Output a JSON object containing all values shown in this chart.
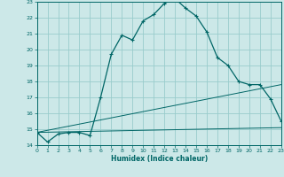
{
  "xlabel": "Humidex (Indice chaleur)",
  "xlim": [
    0,
    23
  ],
  "ylim": [
    14,
    23
  ],
  "yticks": [
    14,
    15,
    16,
    17,
    18,
    19,
    20,
    21,
    22,
    23
  ],
  "xticks": [
    0,
    1,
    2,
    3,
    4,
    5,
    6,
    7,
    8,
    9,
    10,
    11,
    12,
    13,
    14,
    15,
    16,
    17,
    18,
    19,
    20,
    21,
    22,
    23
  ],
  "bg_color": "#cce8e8",
  "grid_color": "#99cccc",
  "line_color": "#006666",
  "main_line_x": [
    0,
    1,
    2,
    3,
    4,
    5,
    6,
    7,
    8,
    9,
    10,
    11,
    12,
    13,
    14,
    15,
    16,
    17,
    18,
    19,
    20,
    21,
    22,
    23
  ],
  "main_line_y": [
    14.8,
    14.2,
    14.7,
    14.8,
    14.8,
    14.6,
    17.0,
    19.7,
    20.9,
    20.6,
    21.8,
    22.2,
    22.9,
    23.2,
    22.6,
    22.1,
    21.1,
    19.5,
    19.0,
    18.0,
    17.8,
    17.8,
    16.9,
    15.5
  ],
  "flat_line_x": [
    0,
    23
  ],
  "flat_line_y": [
    14.8,
    15.1
  ],
  "diag_line_x": [
    0,
    23
  ],
  "diag_line_y": [
    14.8,
    17.8
  ]
}
